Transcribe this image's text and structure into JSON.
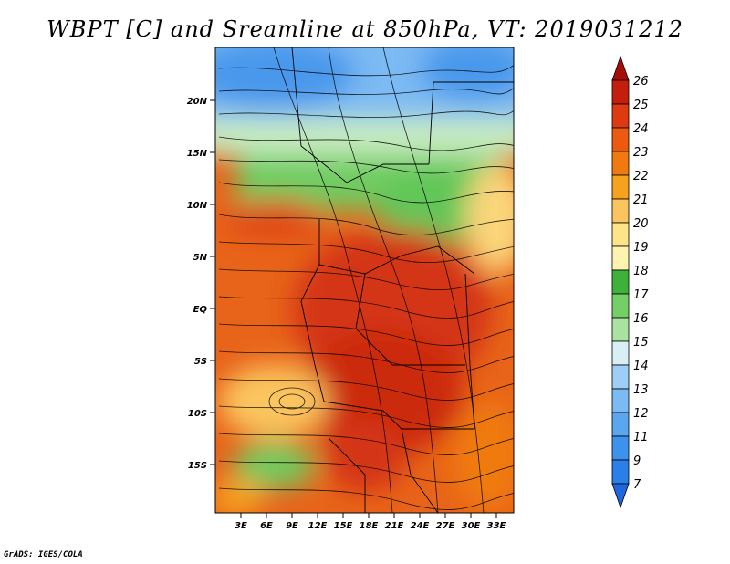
{
  "title": "WBPT [C] and Sreamline at 850hPa, VT: 2019031212",
  "credit": "GrADS: IGES/COLA",
  "map": {
    "lat_labels": [
      "20N",
      "15N",
      "10N",
      "5N",
      "EQ",
      "5S",
      "10S",
      "15S"
    ],
    "lon_labels": [
      "3E",
      "6E",
      "9E",
      "12E",
      "15E",
      "18E",
      "21E",
      "24E",
      "27E",
      "30E",
      "33E"
    ],
    "lon_range": [
      0,
      35
    ],
    "lat_range": [
      -20,
      24.5
    ]
  },
  "colorbar": {
    "levels": [
      "7",
      "9",
      "11",
      "12",
      "13",
      "14",
      "15",
      "16",
      "17",
      "18",
      "19",
      "20",
      "21",
      "22",
      "23",
      "24",
      "25",
      "26"
    ],
    "colors": [
      "#1f66e0",
      "#2b7fe8",
      "#3c92ec",
      "#5aa6ef",
      "#7cbaf3",
      "#a0cdf6",
      "#d8f0f4",
      "#a9e3a0",
      "#74d066",
      "#3fb13a",
      "#fff3b0",
      "#fde38a",
      "#fbc55e",
      "#f7a21e",
      "#f07a10",
      "#ec5a10",
      "#dd3a12",
      "#c41f0c",
      "#a80c08"
    ]
  }
}
